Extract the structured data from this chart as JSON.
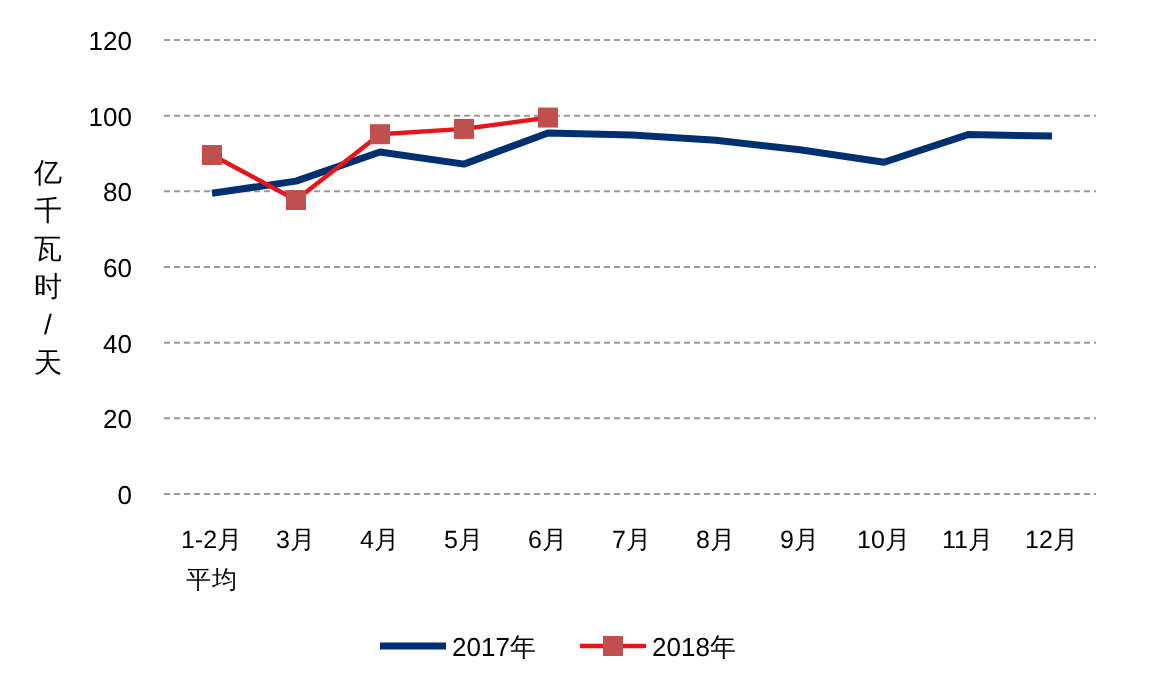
{
  "chart_data": {
    "type": "line",
    "ylabel": "亿千瓦时/天",
    "categories": [
      "1-2月平均",
      "3月",
      "4月",
      "5月",
      "6月",
      "7月",
      "8月",
      "9月",
      "10月",
      "11月",
      "12月"
    ],
    "series": [
      {
        "name": "2017年",
        "color": "#003070",
        "marker": "none",
        "values": [
          79.5,
          82.7,
          90.4,
          87.2,
          95.4,
          94.9,
          93.5,
          91,
          87.7,
          95,
          94.6
        ]
      },
      {
        "name": "2018年",
        "color": "#e8141c",
        "marker": "square",
        "values": [
          89.6,
          77.7,
          95.1,
          96.5,
          99.5,
          null,
          null,
          null,
          null,
          null,
          null
        ]
      }
    ],
    "ylim": [
      0,
      120
    ],
    "yticks": [
      0,
      20,
      40,
      60,
      80,
      100,
      120
    ],
    "grid": "y",
    "legend": "bottom"
  }
}
